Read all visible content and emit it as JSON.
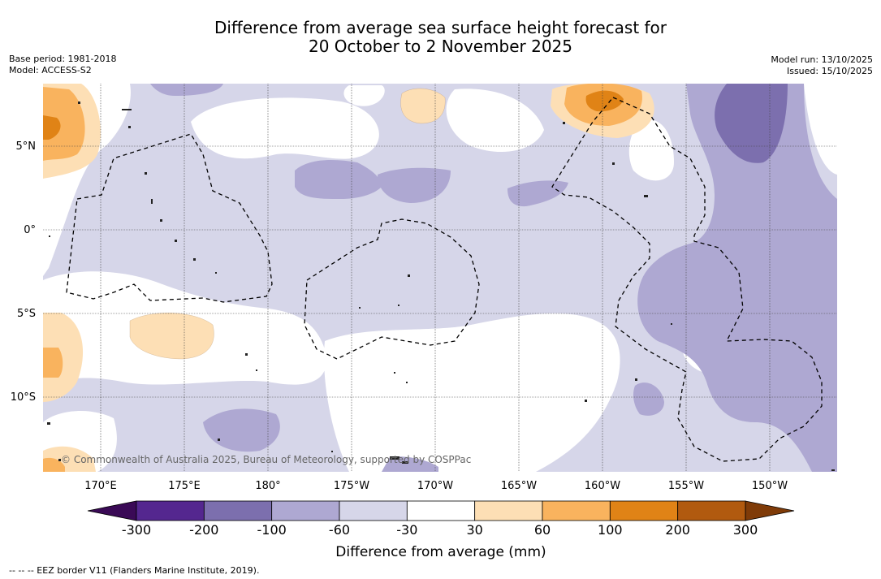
{
  "title": {
    "line1": "Difference from average sea surface height forecast for",
    "line2": "20 October to 2 November 2025"
  },
  "meta": {
    "base_period": "Base period: 1981-2018",
    "model": "Model: ACCESS-S2",
    "model_run": "Model run: 13/10/2025",
    "issued": "Issued: 15/10/2025"
  },
  "map": {
    "lat_labels": [
      "5°N",
      "0°",
      "5°S",
      "10°S"
    ],
    "lon_labels": [
      "170°E",
      "175°E",
      "180°",
      "175°W",
      "170°W",
      "165°W",
      "160°W",
      "155°W",
      "150°W"
    ],
    "copyright": "© Commonwealth of Australia 2025, Bureau of Meteorology, supported by COSPPac"
  },
  "colorbar": {
    "tick_labels": [
      "-300",
      "-200",
      "-100",
      "-60",
      "-30",
      "30",
      "60",
      "100",
      "200",
      "300"
    ],
    "colors": [
      "#3a0a56",
      "#54278f",
      "#7c6fae",
      "#aea8d2",
      "#d6d6e9",
      "#ffffff",
      "#fddfb5",
      "#f9b35e",
      "#e08316",
      "#b15a0f",
      "#7f3b08"
    ],
    "label": "Difference from average (mm)"
  },
  "footer": {
    "eez_note": "--  --  -- EEZ border V11 (Flanders Marine Institute, 2019)."
  }
}
